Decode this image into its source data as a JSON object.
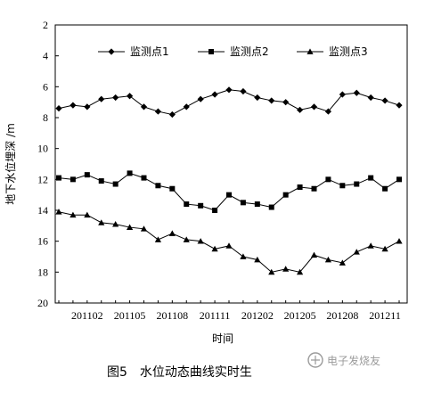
{
  "chart_data": {
    "type": "line",
    "xlabel": "时间",
    "ylabel": "地下水位埋深 /m",
    "ylim": [
      2,
      20
    ],
    "y_inverted": true,
    "y_ticks": [
      "2",
      "4",
      "6",
      "8",
      "10",
      "12",
      "14",
      "16",
      "18",
      "20"
    ],
    "x_tick_labels": [
      "201102",
      "201105",
      "201108",
      "201111",
      "201202",
      "201205",
      "201208",
      "201211"
    ],
    "grid": false,
    "legend_position": "top",
    "series": [
      {
        "name": "监测点1",
        "marker": "diamond",
        "values": [
          7.4,
          7.2,
          7.3,
          6.8,
          6.7,
          6.6,
          7.3,
          7.6,
          7.8,
          7.3,
          6.8,
          6.5,
          6.2,
          6.3,
          6.7,
          6.9,
          7.0,
          7.5,
          7.3,
          7.6,
          6.5,
          6.4,
          6.7,
          6.9,
          7.2
        ]
      },
      {
        "name": "监测点2",
        "marker": "square",
        "values": [
          11.9,
          12.0,
          11.7,
          12.1,
          12.3,
          11.6,
          11.9,
          12.4,
          12.6,
          13.6,
          13.7,
          14.0,
          13.0,
          13.5,
          13.6,
          13.8,
          13.0,
          12.5,
          12.6,
          12.0,
          12.4,
          12.3,
          11.9,
          12.6,
          12.0
        ]
      },
      {
        "name": "监测点3",
        "marker": "triangle",
        "values": [
          14.1,
          14.3,
          14.3,
          14.8,
          14.9,
          15.1,
          15.2,
          15.9,
          15.5,
          15.9,
          16.0,
          16.5,
          16.3,
          17.0,
          17.2,
          18.0,
          17.8,
          18.0,
          16.9,
          17.2,
          17.4,
          16.7,
          16.3,
          16.5,
          16.0
        ]
      }
    ]
  },
  "caption": "图5　水位动态曲线实时生",
  "watermark": "电子发烧友"
}
